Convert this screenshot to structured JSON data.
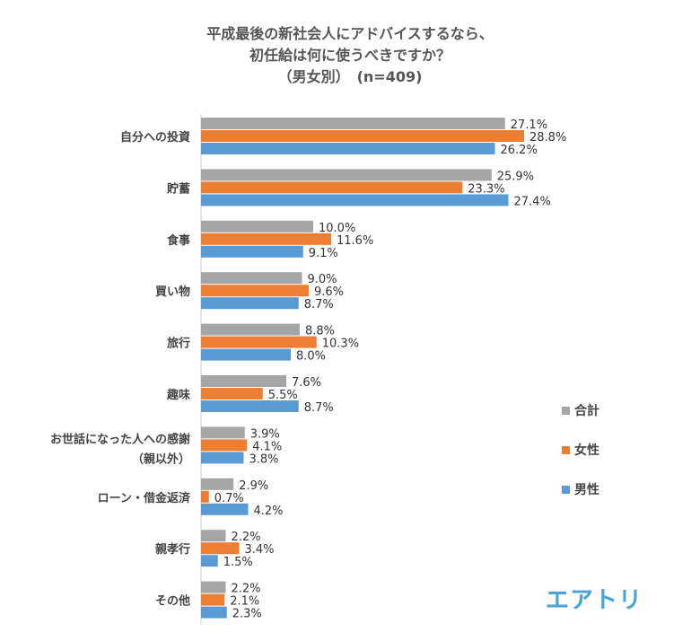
{
  "chart_data": {
    "type": "bar",
    "orientation": "horizontal",
    "title_lines": [
      "平成最後の新社会人にアドバイスするなら、",
      "初任給は何に使うべきですか？",
      "（男女別）　(n=409)"
    ],
    "categories": [
      "自分への投資",
      "貯蓄",
      "食事",
      "買い物",
      "旅行",
      "趣味",
      "お世話になった人への感謝|（親以外）",
      "ローン・借金返済",
      "親孝行",
      "その他"
    ],
    "series": [
      {
        "name": "合計",
        "color": "#a5a5a5",
        "values": [
          27.1,
          25.9,
          10.0,
          9.0,
          8.8,
          7.6,
          3.9,
          2.9,
          2.2,
          2.2
        ]
      },
      {
        "name": "女性",
        "color": "#ed7d31",
        "values": [
          28.8,
          23.3,
          11.6,
          9.6,
          10.3,
          5.5,
          4.1,
          0.7,
          3.4,
          2.1
        ]
      },
      {
        "name": "男性",
        "color": "#5b9bd5",
        "values": [
          26.2,
          27.4,
          9.1,
          8.7,
          8.0,
          8.7,
          3.8,
          4.2,
          1.5,
          2.3
        ]
      }
    ],
    "value_suffix": "%",
    "xlim": [
      0,
      30
    ],
    "grid": false,
    "legend_position": "right"
  },
  "logo": "エアトリ"
}
